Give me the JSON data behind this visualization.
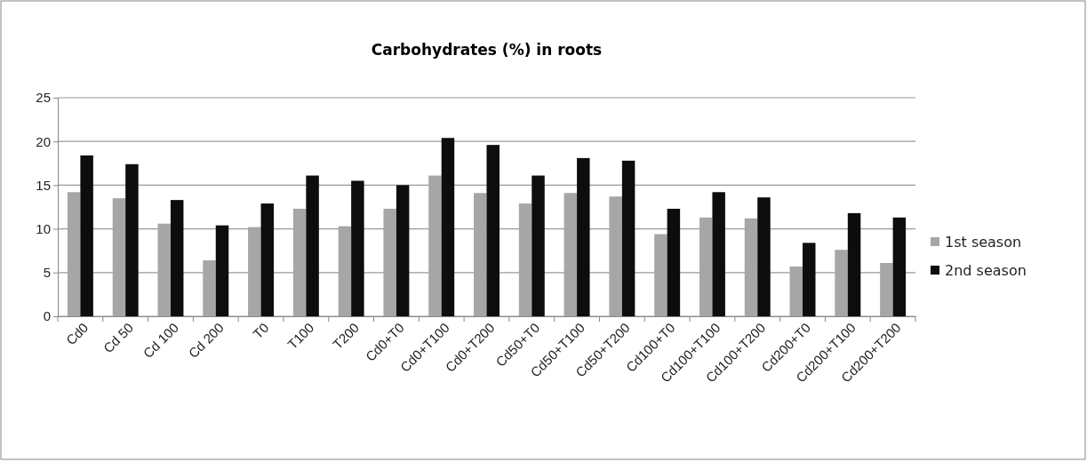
{
  "chart_data": {
    "type": "bar",
    "title": "Carbohydrates (%) in roots",
    "categories": [
      "Cd0",
      "Cd 50",
      "Cd 100",
      "Cd 200",
      "T0",
      "T100",
      "T200",
      "Cd0+T0",
      "Cd0+T100",
      "Cd0+T200",
      "Cd50+T0",
      "Cd50+T100",
      "Cd50+T200",
      "Cd100+T0",
      "Cd100+T100",
      "Cd100+T200",
      "Cd200+T0",
      "Cd200+T100",
      "Cd200+T200"
    ],
    "series": [
      {
        "name": "1st season",
        "color": "#a6a6a6",
        "values": [
          14.2,
          13.5,
          10.6,
          6.4,
          10.2,
          12.3,
          10.3,
          12.3,
          16.1,
          14.1,
          12.9,
          14.1,
          13.7,
          9.4,
          11.3,
          11.2,
          5.7,
          7.6,
          6.1
        ]
      },
      {
        "name": "2nd season",
        "color": "#0d0d0d",
        "values": [
          18.4,
          17.4,
          13.3,
          10.4,
          12.9,
          16.1,
          15.5,
          15.0,
          20.4,
          19.6,
          16.1,
          18.1,
          17.8,
          12.3,
          14.2,
          13.6,
          8.4,
          11.8,
          11.3
        ]
      }
    ],
    "ylim": [
      0,
      25
    ],
    "yticks": [
      0,
      5,
      10,
      15,
      20,
      25
    ],
    "grid": "y",
    "legend": "right"
  }
}
